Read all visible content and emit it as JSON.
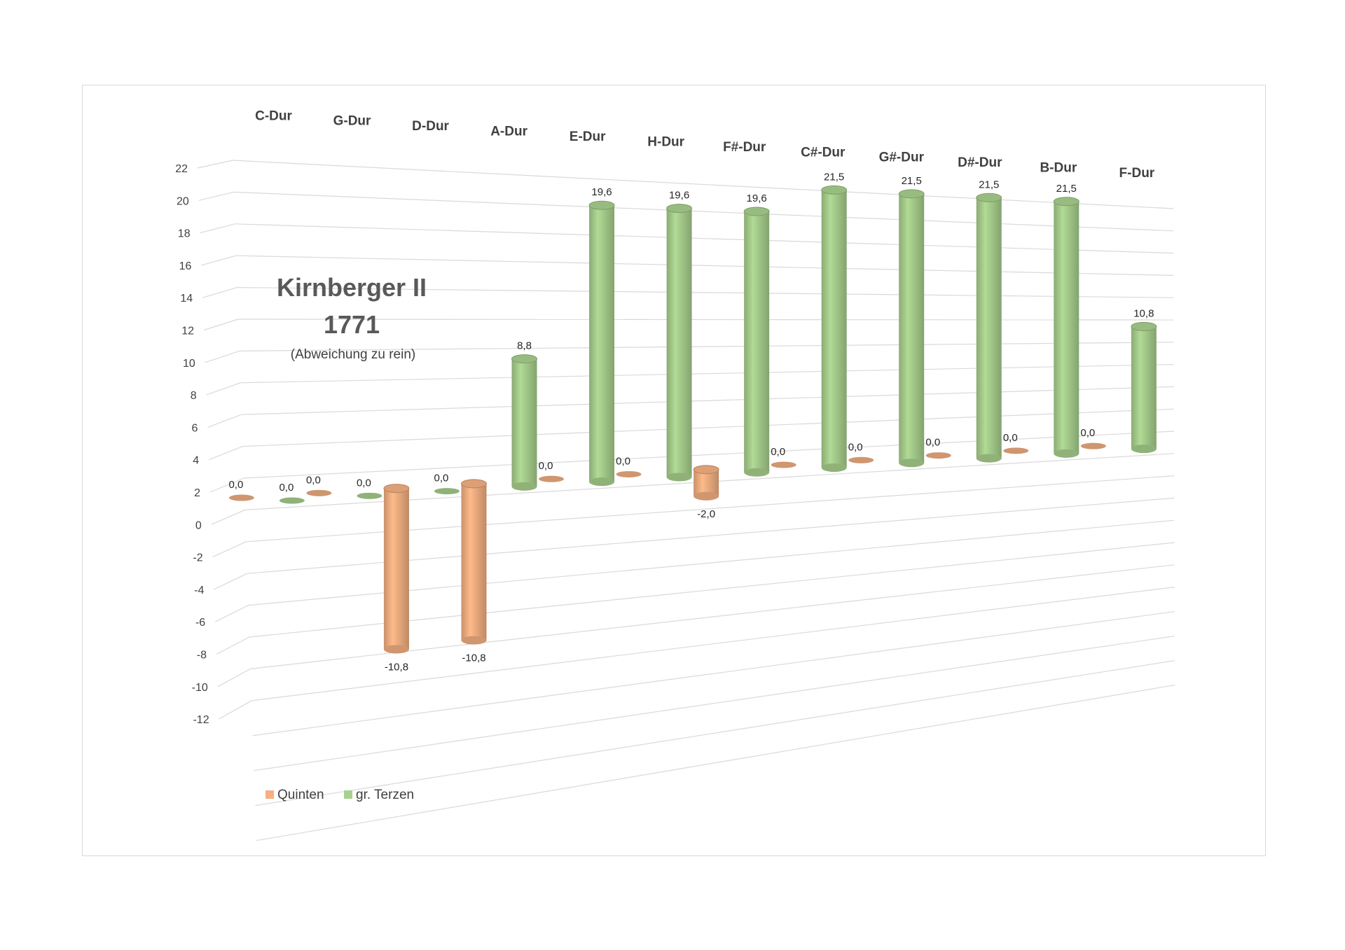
{
  "chart_data": {
    "type": "bar",
    "variant": "3d-cylinder",
    "title": "Kirnberger II",
    "title_year": "1771",
    "subtitle": "(Abweichung zu rein)",
    "categories": [
      "C-Dur",
      "G-Dur",
      "D-Dur",
      "A-Dur",
      "E-Dur",
      "H-Dur",
      "F#-Dur",
      "C#-Dur",
      "G#-Dur",
      "D#-Dur",
      "B-Dur",
      "F-Dur"
    ],
    "series": [
      {
        "name": "Quinten",
        "color": "#f4b183",
        "values": [
          0.0,
          0.0,
          -10.8,
          -10.8,
          0.0,
          0.0,
          -2.0,
          0.0,
          0.0,
          0.0,
          0.0,
          0.0
        ],
        "labels": [
          "0,0",
          "0,0",
          "-10,8",
          "-10,8",
          "0,0",
          "0,0",
          "-2,0",
          "0,0",
          "0,0",
          "0,0",
          "0,0",
          "0,0"
        ]
      },
      {
        "name": "gr. Terzen",
        "color": "#a9d18e",
        "values": [
          0.0,
          0.0,
          0.0,
          8.8,
          19.6,
          19.6,
          19.6,
          21.5,
          21.5,
          21.5,
          21.5,
          10.8
        ],
        "labels": [
          "0,0",
          "0,0",
          "0,0",
          "8,8",
          "19,6",
          "19,6",
          "19,6",
          "21,5",
          "21,5",
          "21,5",
          "21,5",
          "10,8"
        ]
      }
    ],
    "yticks": [
      "22",
      "20",
      "18",
      "16",
      "14",
      "12",
      "10",
      "8",
      "6",
      "4",
      "2",
      "0",
      "-2",
      "-4",
      "-6",
      "-8",
      "-10",
      "-12"
    ],
    "ylim": [
      -12,
      22
    ],
    "grid": true,
    "legend_position": "bottom-left"
  }
}
